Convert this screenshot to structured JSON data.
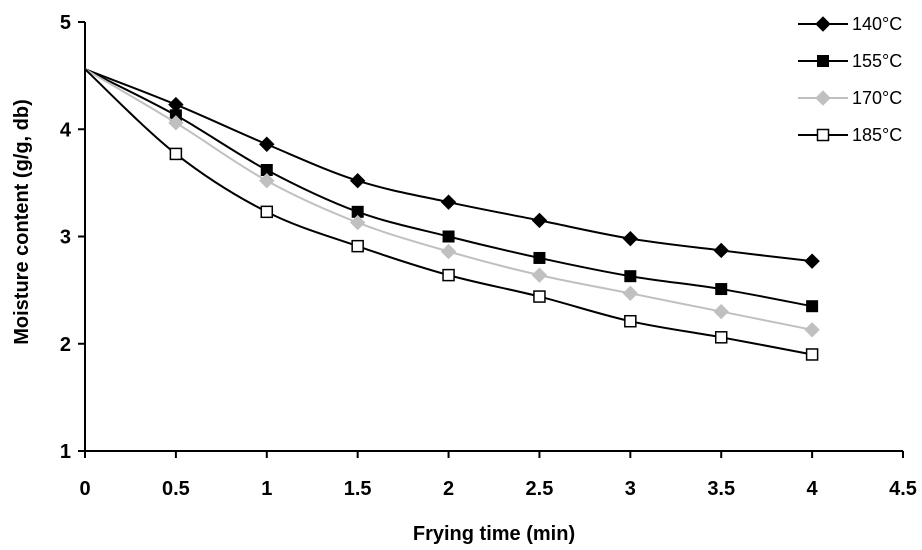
{
  "chart_data": {
    "type": "line",
    "xlabel": "Frying time (min)",
    "ylabel": "Moisture content (g/g, db)",
    "xlim": [
      0,
      4.5
    ],
    "ylim": [
      1,
      5
    ],
    "xticks": [
      0,
      0.5,
      1,
      1.5,
      2,
      2.5,
      3,
      3.5,
      4,
      4.5
    ],
    "xtick_labels": [
      "0",
      "0.5",
      "1",
      "1.5",
      "2",
      "2.5",
      "3",
      "3.5",
      "4",
      "4.5"
    ],
    "yticks": [
      1,
      2,
      3,
      4,
      5
    ],
    "ytick_labels": [
      "1",
      "2",
      "3",
      "4",
      "5"
    ],
    "grid": false,
    "legend_position": "top-right",
    "x": [
      0,
      0.5,
      1,
      1.5,
      2,
      2.5,
      3,
      3.5,
      4
    ],
    "series": [
      {
        "name": "140°C",
        "marker": "diamond",
        "color": "#000000",
        "marker_fill": "#000000",
        "values": [
          4.56,
          4.23,
          3.86,
          3.52,
          3.32,
          3.15,
          2.98,
          2.87,
          2.77
        ]
      },
      {
        "name": "155°C",
        "marker": "square",
        "color": "#000000",
        "marker_fill": "#000000",
        "values": [
          4.56,
          4.13,
          3.62,
          3.23,
          3.0,
          2.8,
          2.63,
          2.51,
          2.35
        ]
      },
      {
        "name": "170°C",
        "marker": "diamond",
        "color": "#c0c0c0",
        "marker_fill": "#c0c0c0",
        "values": [
          4.56,
          4.06,
          3.52,
          3.13,
          2.86,
          2.64,
          2.47,
          2.3,
          2.13
        ]
      },
      {
        "name": "185°C",
        "marker": "square-open",
        "color": "#000000",
        "marker_fill": "#ffffff",
        "values": [
          4.56,
          3.77,
          3.23,
          2.91,
          2.64,
          2.44,
          2.21,
          2.06,
          1.9
        ]
      }
    ]
  }
}
